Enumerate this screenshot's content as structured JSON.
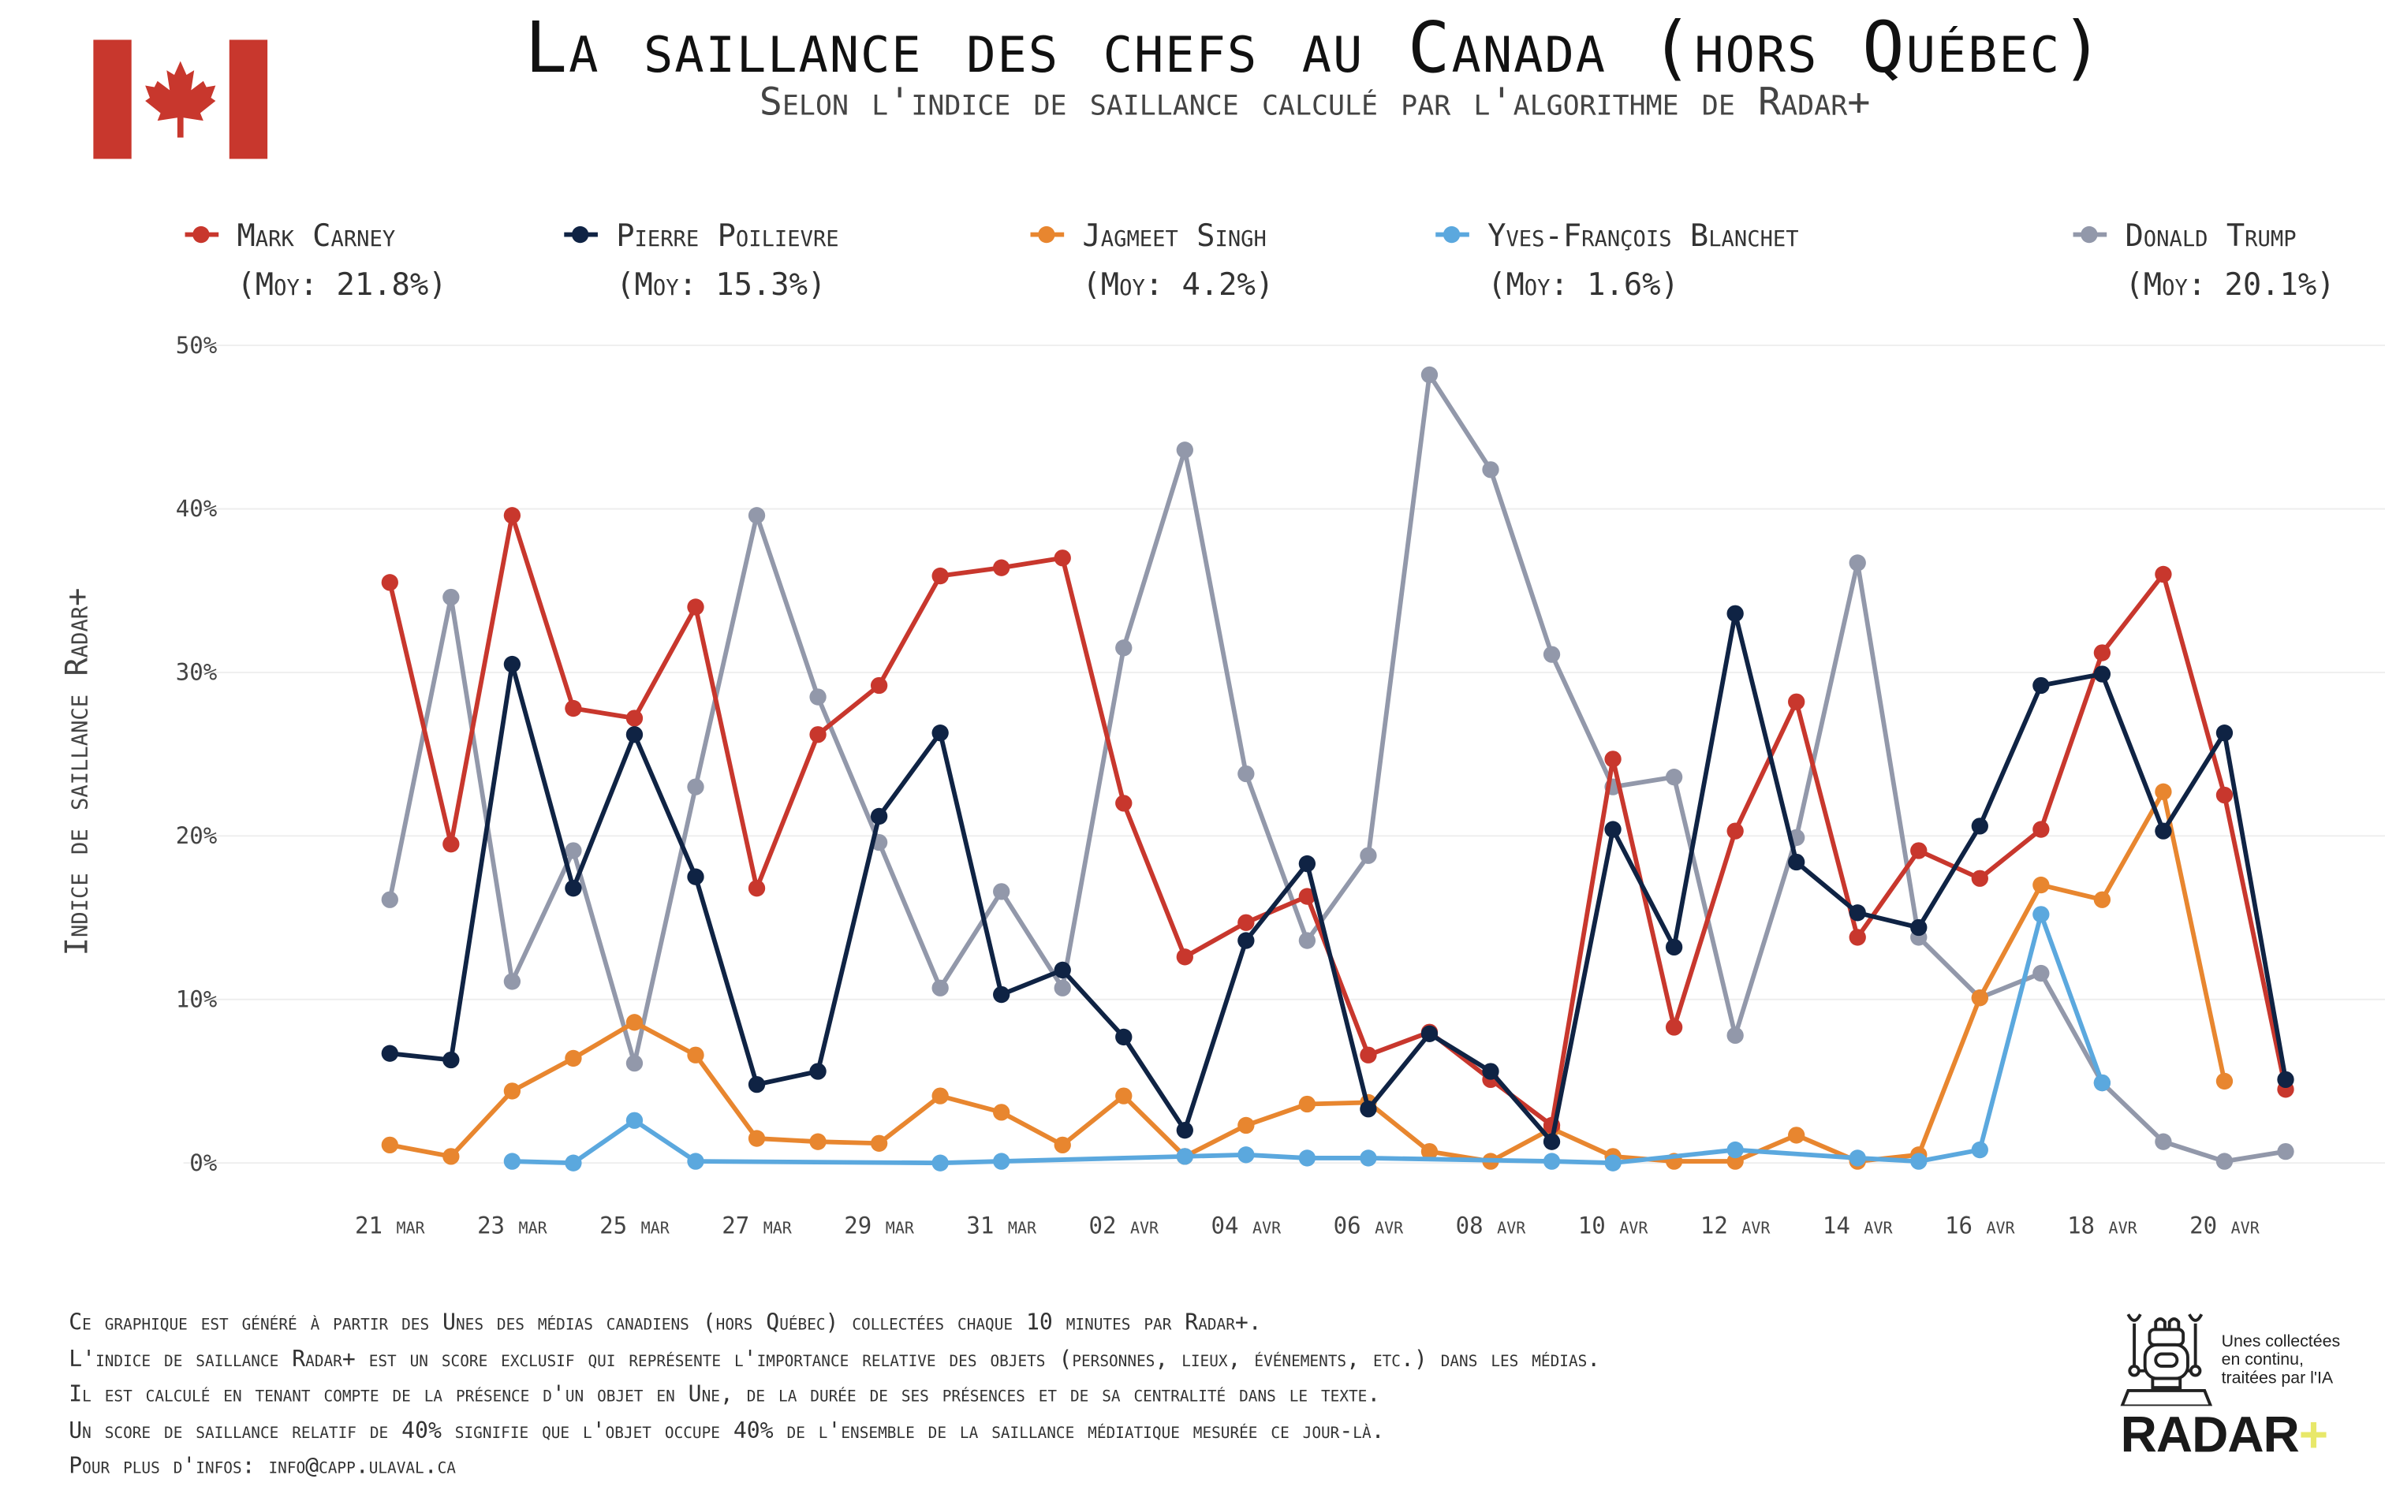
{
  "header": {
    "title": "La saillance des chefs au Canada (hors Québec)",
    "subtitle": "Selon l'indice de saillance calculé par l'algorithme de Radar+"
  },
  "footer": {
    "lines": [
      "Ce graphique est généré à partir des Unes des médias canadiens (hors Québec) collectées chaque 10 minutes par Radar+.",
      "L'indice de saillance Radar+ est un score exclusif qui représente l'importance relative des objets (personnes, lieux, événements, etc.) dans les médias.",
      "Il est calculé en tenant compte de la présence d'un objet en Une, de la durée de ses présences et de sa centralité dans le texte.",
      "Un score de saillance relatif de 40% signifie que l'objet occupe 40% de l'ensemble de la saillance médiatique mesurée ce jour-là.",
      "Pour plus d'infos: info@capp.ulaval.ca"
    ]
  },
  "logo": {
    "tagline": [
      "Unes collectées",
      "en continu,",
      "traitées par l'IA"
    ],
    "brand": "RADAR",
    "brand_plus": "+"
  },
  "chart_data": {
    "type": "line",
    "title": "La saillance des chefs au Canada (hors Québec)",
    "ylabel": "Indice de saillance Radar+",
    "xlabel": "",
    "ylim": [
      0,
      50
    ],
    "yticks": [
      "0%",
      "10%",
      "20%",
      "30%",
      "40%",
      "50%"
    ],
    "ytick_values": [
      0,
      10,
      20,
      30,
      40,
      50
    ],
    "x": [
      "21 mar",
      "22 mar",
      "23 mar",
      "24 mar",
      "25 mar",
      "26 mar",
      "27 mar",
      "28 mar",
      "29 mar",
      "30 mar",
      "31 mar",
      "01 avr",
      "02 avr",
      "03 avr",
      "04 avr",
      "05 avr",
      "06 avr",
      "07 avr",
      "08 avr",
      "09 avr",
      "10 avr",
      "11 avr",
      "12 avr",
      "13 avr",
      "14 avr",
      "15 avr",
      "16 avr",
      "17 avr",
      "18 avr",
      "19 avr",
      "20 avr",
      "21 avr"
    ],
    "xticks": [
      "21 mar",
      "23 mar",
      "25 mar",
      "27 mar",
      "29 mar",
      "31 mar",
      "02 avr",
      "04 avr",
      "06 avr",
      "08 avr",
      "10 avr",
      "12 avr",
      "14 avr",
      "16 avr",
      "18 avr",
      "20 avr"
    ],
    "legend_placement": "top",
    "grid": true,
    "series": [
      {
        "name": "Mark Carney",
        "avg": "(Moy: 21.8%)",
        "color": "#c8372d",
        "values": [
          35.5,
          19.5,
          39.6,
          27.8,
          27.2,
          34.0,
          16.8,
          26.2,
          29.2,
          35.9,
          36.4,
          37.0,
          22.0,
          12.6,
          14.7,
          16.3,
          6.6,
          8.0,
          5.1,
          2.3,
          24.7,
          8.3,
          20.3,
          28.2,
          13.8,
          19.1,
          17.4,
          20.4,
          31.2,
          36.0,
          22.5,
          4.5
        ]
      },
      {
        "name": "Pierre Poilievre",
        "avg": "(Moy: 15.3%)",
        "color": "#0f2344",
        "values": [
          6.7,
          6.3,
          30.5,
          16.8,
          26.2,
          17.5,
          4.8,
          5.6,
          21.2,
          26.3,
          10.3,
          11.8,
          7.7,
          2.0,
          13.6,
          18.3,
          3.3,
          7.9,
          5.6,
          1.3,
          20.4,
          13.2,
          33.6,
          18.4,
          15.3,
          14.4,
          20.6,
          29.2,
          29.9,
          20.3,
          26.3,
          5.1
        ]
      },
      {
        "name": "Jagmeet Singh",
        "avg": "(Moy: 4.2%)",
        "color": "#e8862f",
        "values": [
          1.1,
          0.4,
          4.4,
          6.4,
          8.6,
          6.6,
          1.5,
          1.3,
          1.2,
          4.1,
          3.1,
          1.1,
          4.1,
          0.4,
          2.3,
          3.6,
          3.7,
          0.7,
          0.1,
          2.1,
          0.4,
          0.1,
          0.1,
          1.7,
          0.1,
          0.5,
          10.1,
          17.0,
          16.1,
          22.7,
          5.0,
          null
        ]
      },
      {
        "name": "Yves-François Blanchet",
        "avg": "(Moy: 1.6%)",
        "color": "#5ba8de",
        "values": [
          null,
          null,
          0.1,
          0.0,
          2.6,
          0.1,
          null,
          null,
          null,
          0.0,
          0.1,
          null,
          null,
          0.4,
          0.5,
          0.3,
          0.3,
          null,
          null,
          0.1,
          0.0,
          null,
          0.8,
          null,
          0.3,
          0.1,
          0.8,
          15.2,
          4.9,
          null,
          null,
          null
        ]
      },
      {
        "name": "Donald Trump",
        "avg": "(Moy: 20.1%)",
        "color": "#9298aa",
        "values": [
          16.1,
          34.6,
          11.1,
          19.1,
          6.1,
          23.0,
          39.6,
          28.5,
          19.6,
          10.7,
          16.6,
          10.7,
          31.5,
          43.6,
          23.8,
          13.6,
          18.8,
          48.2,
          42.4,
          31.1,
          23.0,
          23.6,
          7.8,
          19.9,
          36.7,
          13.8,
          10.1,
          11.6,
          4.9,
          1.3,
          0.1,
          0.7
        ]
      }
    ]
  }
}
